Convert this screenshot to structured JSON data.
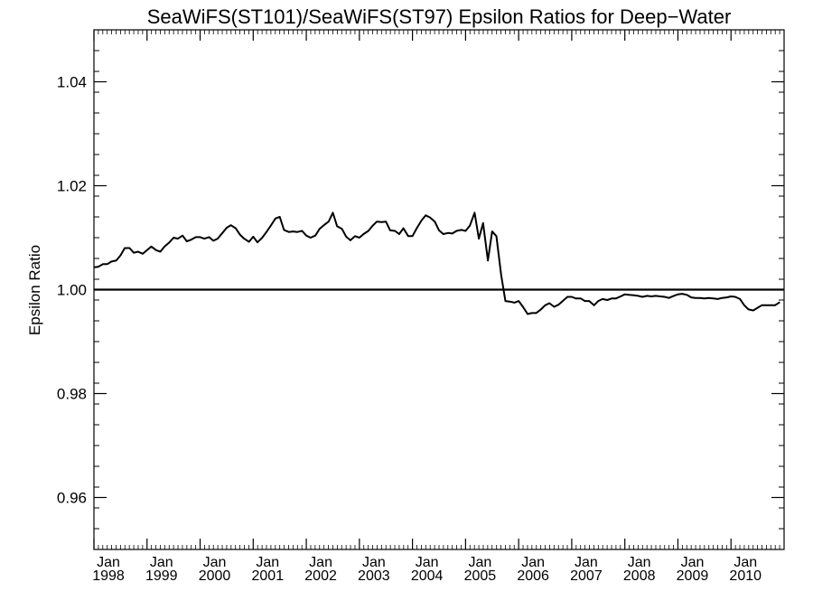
{
  "chart_data": {
    "type": "line",
    "title": "SeaWiFS(ST101)/SeaWiFS(ST97)  Epsilon Ratios for Deep−Water",
    "ylabel": "Epsilon Ratio",
    "xlabel": "",
    "ylim": [
      0.95,
      1.05
    ],
    "xlim": [
      1998.0,
      2011.0
    ],
    "yticks": [
      {
        "value": 0.96,
        "label": "0.96"
      },
      {
        "value": 0.98,
        "label": "0.98"
      },
      {
        "value": 1.0,
        "label": "1.00"
      },
      {
        "value": 1.02,
        "label": "1.02"
      },
      {
        "value": 1.04,
        "label": "1.04"
      }
    ],
    "xticks": [
      {
        "value": 1998,
        "month": "Jan",
        "year": "1998"
      },
      {
        "value": 1999,
        "month": "Jan",
        "year": "1999"
      },
      {
        "value": 2000,
        "month": "Jan",
        "year": "2000"
      },
      {
        "value": 2001,
        "month": "Jan",
        "year": "2001"
      },
      {
        "value": 2002,
        "month": "Jan",
        "year": "2002"
      },
      {
        "value": 2003,
        "month": "Jan",
        "year": "2003"
      },
      {
        "value": 2004,
        "month": "Jan",
        "year": "2004"
      },
      {
        "value": 2005,
        "month": "Jan",
        "year": "2005"
      },
      {
        "value": 2006,
        "month": "Jan",
        "year": "2006"
      },
      {
        "value": 2007,
        "month": "Jan",
        "year": "2007"
      },
      {
        "value": 2008,
        "month": "Jan",
        "year": "2008"
      },
      {
        "value": 2009,
        "month": "Jan",
        "year": "2009"
      },
      {
        "value": 2010,
        "month": "Jan",
        "year": "2010"
      }
    ],
    "reference_line": {
      "y": 1.0
    },
    "grid": false,
    "series": [
      {
        "x": [
          1998.0,
          1998.08,
          1998.17,
          1998.25,
          1998.33,
          1998.42,
          1998.5,
          1998.58,
          1998.67,
          1998.75,
          1998.83,
          1998.92,
          1999.0,
          1999.08,
          1999.17,
          1999.25,
          1999.33,
          1999.42,
          1999.5,
          1999.58,
          1999.67,
          1999.75,
          1999.83,
          1999.92,
          2000.0,
          2000.08,
          2000.17,
          2000.25,
          2000.33,
          2000.42,
          2000.5,
          2000.58,
          2000.67,
          2000.75,
          2000.83,
          2000.92,
          2001.0,
          2001.08,
          2001.17,
          2001.25,
          2001.33,
          2001.42,
          2001.5,
          2001.58,
          2001.67,
          2001.75,
          2001.83,
          2001.92,
          2002.0,
          2002.08,
          2002.17,
          2002.25,
          2002.33,
          2002.42,
          2002.5,
          2002.58,
          2002.67,
          2002.75,
          2002.83,
          2002.92,
          2003.0,
          2003.08,
          2003.17,
          2003.25,
          2003.33,
          2003.42,
          2003.5,
          2003.58,
          2003.67,
          2003.75,
          2003.83,
          2003.92,
          2004.0,
          2004.08,
          2004.17,
          2004.25,
          2004.33,
          2004.42,
          2004.5,
          2004.58,
          2004.67,
          2004.75,
          2004.83,
          2004.92,
          2005.0,
          2005.08,
          2005.17,
          2005.25,
          2005.33,
          2005.42,
          2005.5,
          2005.58,
          2005.67,
          2005.75,
          2005.83,
          2005.92,
          2006.0,
          2006.08,
          2006.17,
          2006.25,
          2006.33,
          2006.42,
          2006.5,
          2006.58,
          2006.67,
          2006.75,
          2006.83,
          2006.92,
          2007.0,
          2007.08,
          2007.17,
          2007.25,
          2007.33,
          2007.42,
          2007.5,
          2007.58,
          2007.67,
          2007.75,
          2007.83,
          2007.92,
          2008.0,
          2008.08,
          2008.17,
          2008.25,
          2008.33,
          2008.42,
          2008.5,
          2008.58,
          2008.67,
          2008.75,
          2008.83,
          2008.92,
          2009.0,
          2009.08,
          2009.17,
          2009.25,
          2009.33,
          2009.42,
          2009.5,
          2009.58,
          2009.67,
          2009.75,
          2009.83,
          2009.92,
          2010.0,
          2010.08,
          2010.17,
          2010.25,
          2010.33,
          2010.42,
          2010.5,
          2010.58,
          2010.67,
          2010.75,
          2010.83,
          2010.92
        ],
        "y": [
          1.0043,
          1.0044,
          1.0049,
          1.0049,
          1.0054,
          1.0056,
          1.0066,
          1.008,
          1.008,
          1.0071,
          1.0073,
          1.0069,
          1.0076,
          1.0083,
          1.0076,
          1.0073,
          1.0083,
          1.0091,
          1.01,
          1.0098,
          1.0104,
          1.0093,
          1.0096,
          1.0101,
          1.0101,
          1.0098,
          1.0101,
          1.0094,
          1.0098,
          1.0109,
          1.0119,
          1.0124,
          1.0118,
          1.0106,
          1.0098,
          1.0092,
          1.0102,
          1.0091,
          1.01,
          1.0111,
          1.0123,
          1.0137,
          1.014,
          1.0115,
          1.0111,
          1.0112,
          1.0111,
          1.0113,
          1.0104,
          1.01,
          1.0104,
          1.0117,
          1.0124,
          1.0131,
          1.0148,
          1.0122,
          1.0117,
          1.0102,
          1.0095,
          1.0103,
          1.01,
          1.0107,
          1.0113,
          1.0123,
          1.0131,
          1.013,
          1.0131,
          1.0114,
          1.0113,
          1.0107,
          1.0118,
          1.0103,
          1.0103,
          1.0118,
          1.0133,
          1.0143,
          1.0139,
          1.0131,
          1.0114,
          1.0107,
          1.0109,
          1.0108,
          1.0113,
          1.0115,
          1.0113,
          1.0123,
          1.0148,
          1.0098,
          1.0128,
          1.0056,
          1.0112,
          1.0103,
          1.0028,
          0.9978,
          0.9977,
          0.9975,
          0.9978,
          0.9967,
          0.9953,
          0.9955,
          0.9955,
          0.9962,
          0.997,
          0.9974,
          0.9967,
          0.9971,
          0.9978,
          0.9986,
          0.9986,
          0.9983,
          0.9983,
          0.9978,
          0.9978,
          0.997,
          0.9978,
          0.9982,
          0.998,
          0.9983,
          0.9983,
          0.9987,
          0.9991,
          0.999,
          0.9989,
          0.9988,
          0.9986,
          0.9988,
          0.9987,
          0.9988,
          0.9987,
          0.9986,
          0.9984,
          0.9988,
          0.9991,
          0.9992,
          0.999,
          0.9985,
          0.9984,
          0.9984,
          0.9983,
          0.9984,
          0.9983,
          0.9982,
          0.9984,
          0.9985,
          0.9987,
          0.9986,
          0.9982,
          0.997,
          0.9962,
          0.996,
          0.9965,
          0.997,
          0.997,
          0.997,
          0.997,
          0.9976
        ]
      }
    ]
  }
}
